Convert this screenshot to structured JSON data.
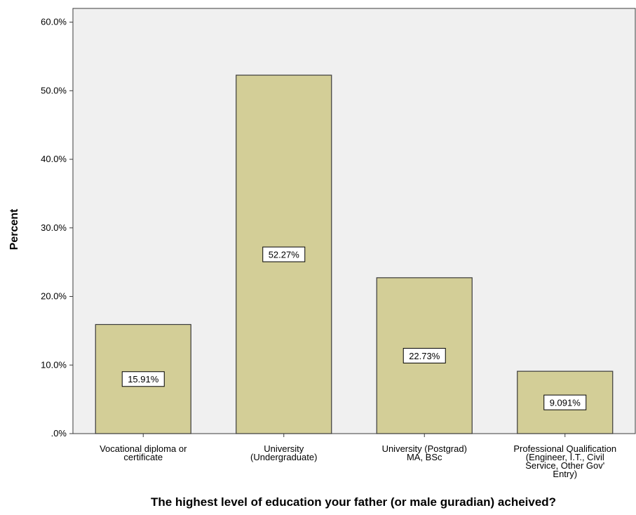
{
  "chart_data": {
    "type": "bar",
    "title": "",
    "xlabel": "The highest level of education your father (or male guradian) acheived?",
    "ylabel": "Percent",
    "ylim": [
      0,
      62
    ],
    "yticks": [
      ".0%",
      "10.0%",
      "20.0%",
      "30.0%",
      "40.0%",
      "50.0%",
      "60.0%"
    ],
    "grid": false,
    "categories": [
      [
        "Vocational diploma or",
        "certificate"
      ],
      [
        "University",
        "(Undergraduate)"
      ],
      [
        "University (Postgrad)",
        "MA, BSc"
      ],
      [
        "Professional Qualification",
        "(Engineer, I.T., Civil",
        "Service, Other Gov'",
        "Entry)"
      ]
    ],
    "values": [
      15.91,
      52.27,
      22.73,
      9.091
    ],
    "data_labels": [
      "15.91%",
      "52.27%",
      "22.73%",
      "9.091%"
    ],
    "bar_color": "#d3ce97",
    "bar_edge_color": "#3b3b3b"
  }
}
